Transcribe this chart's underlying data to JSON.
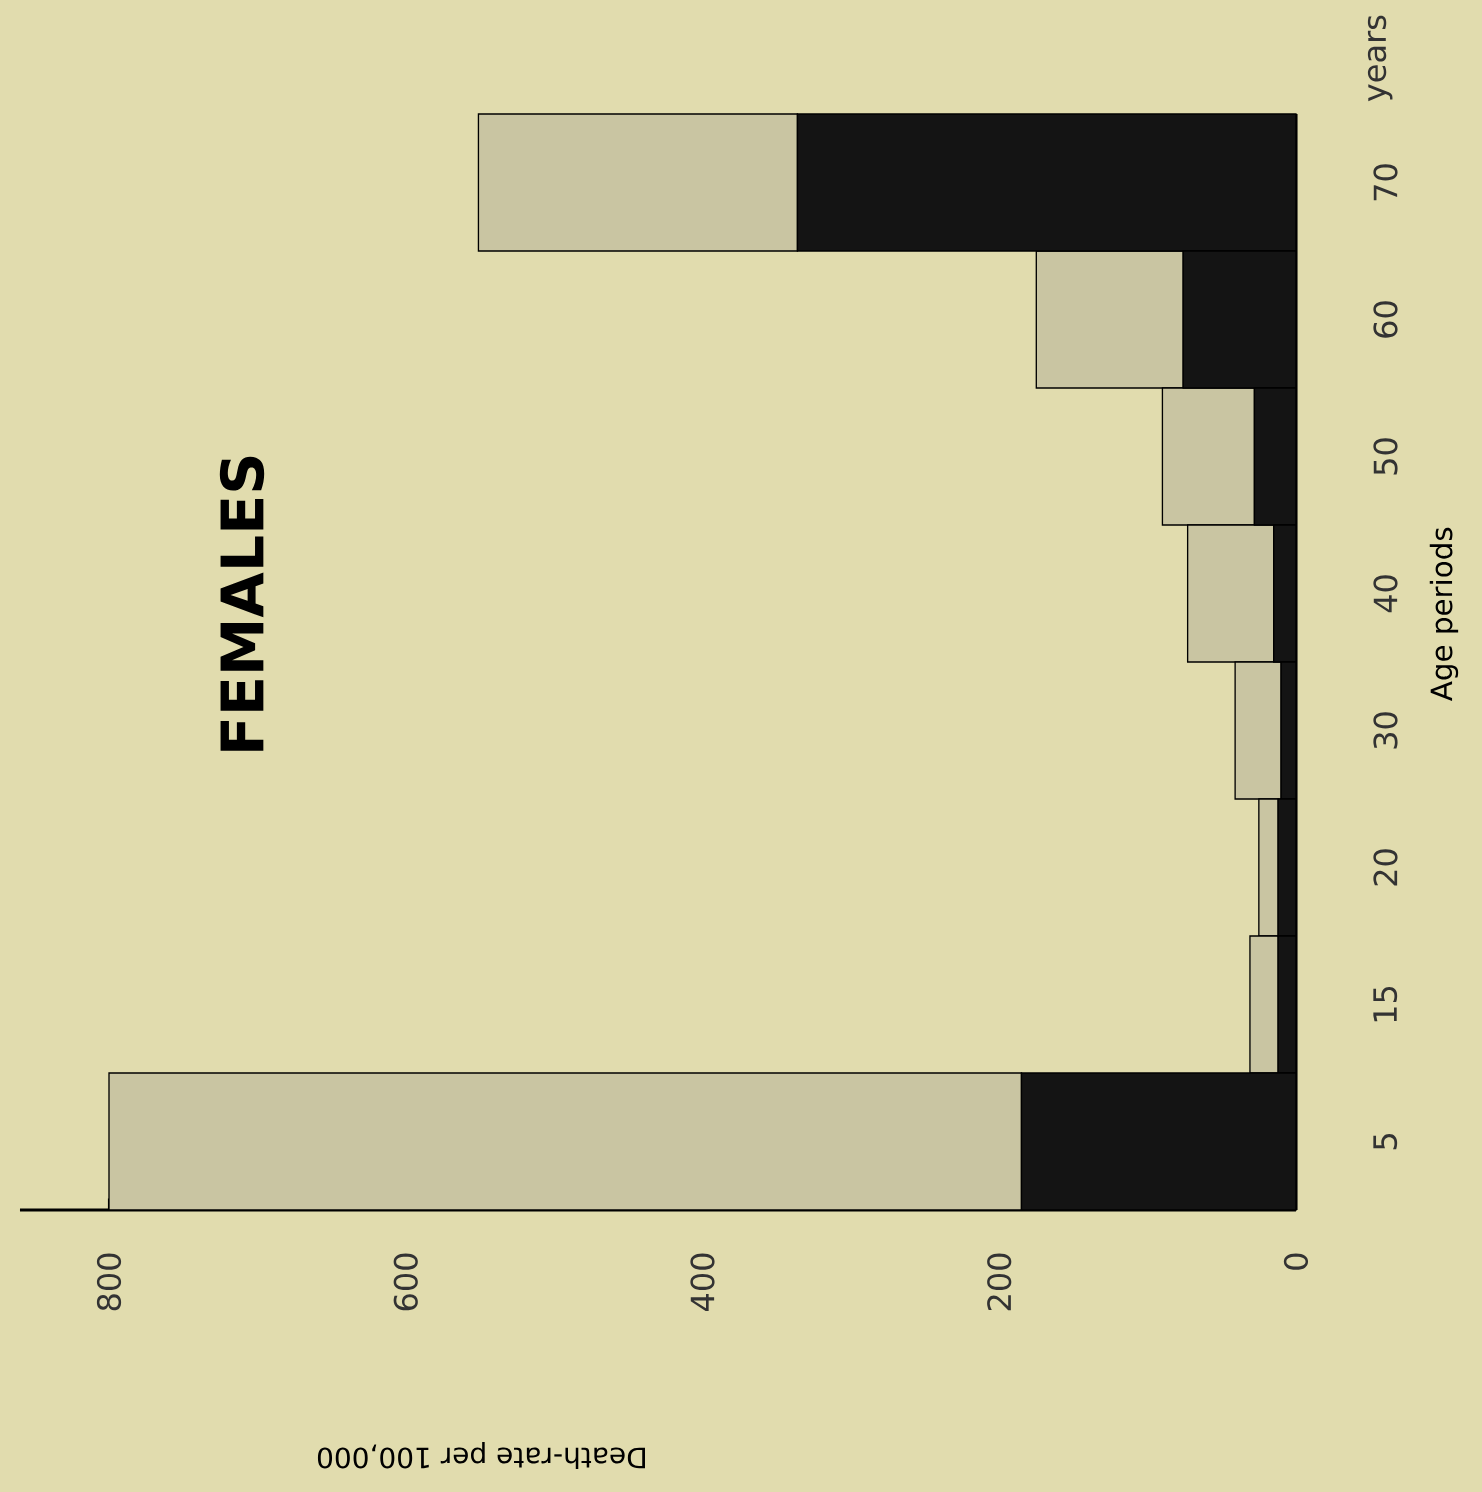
{
  "chart_data": {
    "type": "bar",
    "stacked": true,
    "orientation": "horizontal",
    "title": "FEMALES",
    "xlabel": "Death-rate per 100,000",
    "ylabel": "Age periods",
    "categories": [
      "70",
      "60",
      "50",
      "40",
      "30",
      "20",
      "15",
      "5"
    ],
    "series": [
      {
        "color": "#141414",
        "values": [
          336,
          76,
          28,
          15,
          10,
          12,
          12,
          185
        ]
      },
      {
        "color": "#c9c5a2",
        "values": [
          215,
          99,
          62,
          58,
          31,
          13,
          19,
          615
        ]
      }
    ],
    "xlim": [
      860,
      0
    ],
    "xticks": [
      800,
      600,
      400,
      200,
      0
    ],
    "annotations": [
      "years"
    ],
    "grid": false
  }
}
